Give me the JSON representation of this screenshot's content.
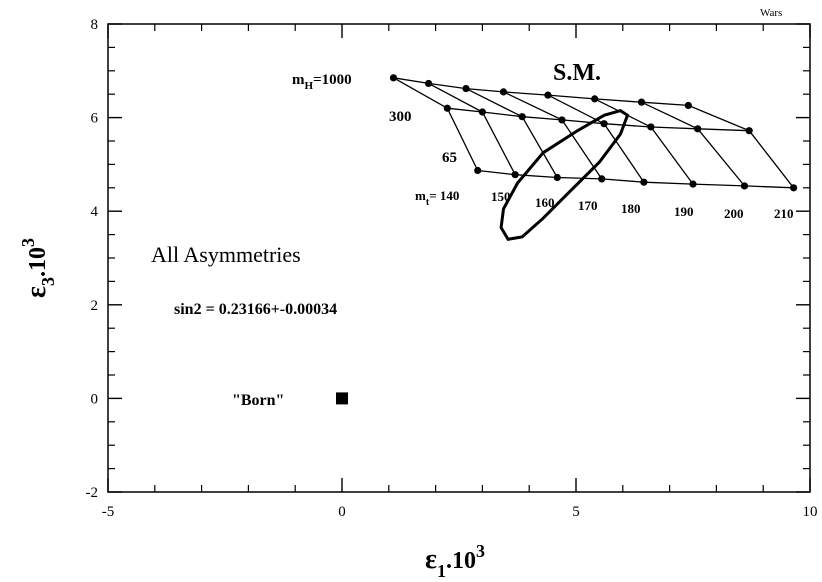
{
  "chart_data": {
    "type": "scatter",
    "title": "",
    "corner_label": "Wars",
    "xlabel": {
      "main": "ε",
      "sub": "1",
      "mid": ".10",
      "sup": "3"
    },
    "ylabel": {
      "main": "ε",
      "sub": "3",
      "mid": ".10",
      "sup": "3"
    },
    "xlim": [
      -5,
      10
    ],
    "ylim": [
      -2,
      8
    ],
    "x_ticks": [
      -5,
      0,
      5,
      10
    ],
    "y_ticks": [
      -2,
      0,
      2,
      4,
      6,
      8
    ],
    "x_minor_step": 1,
    "y_minor_step": 0.5,
    "grid": false,
    "grid_rows": [
      {
        "name": "mH=1000",
        "points": [
          [
            1.1,
            6.85
          ],
          [
            1.85,
            6.73
          ],
          [
            2.65,
            6.62
          ],
          [
            3.45,
            6.55
          ],
          [
            4.4,
            6.48
          ],
          [
            5.4,
            6.4
          ],
          [
            6.4,
            6.33
          ],
          [
            7.4,
            6.26
          ]
        ]
      },
      {
        "name": "mH=300",
        "points": [
          [
            2.25,
            6.2
          ],
          [
            3.0,
            6.12
          ],
          [
            3.85,
            6.02
          ],
          [
            4.7,
            5.95
          ],
          [
            5.6,
            5.87
          ],
          [
            6.6,
            5.8
          ],
          [
            7.6,
            5.76
          ],
          [
            8.7,
            5.72
          ]
        ]
      },
      {
        "name": "mH=65",
        "points": [
          [
            2.9,
            4.87
          ],
          [
            3.7,
            4.78
          ],
          [
            4.6,
            4.72
          ],
          [
            5.55,
            4.69
          ],
          [
            6.45,
            4.62
          ],
          [
            7.5,
            4.58
          ],
          [
            8.6,
            4.54
          ],
          [
            9.65,
            4.5
          ]
        ]
      }
    ],
    "mt_values": [
      "140",
      "150",
      "160",
      "170",
      "180",
      "190",
      "200",
      "210"
    ],
    "born_point": {
      "label": "\"Born\"",
      "x": 0,
      "y": 0
    },
    "ellipse": {
      "points": [
        [
          3.4,
          3.65
        ],
        [
          3.55,
          3.4
        ],
        [
          3.85,
          3.45
        ],
        [
          4.3,
          3.85
        ],
        [
          4.9,
          4.45
        ],
        [
          5.5,
          5.05
        ],
        [
          5.95,
          5.65
        ],
        [
          6.1,
          6.05
        ],
        [
          5.95,
          6.15
        ],
        [
          5.6,
          6.05
        ],
        [
          5.0,
          5.7
        ],
        [
          4.3,
          5.25
        ],
        [
          3.75,
          4.6
        ],
        [
          3.45,
          4.05
        ]
      ]
    },
    "annotations": {
      "sm": "S.M.",
      "mh_prefix": "m",
      "mh_sub": "H",
      "mh_value": "=1000",
      "mh_300": "300",
      "mh_65": "65",
      "mt_prefix": "m",
      "mt_sub": "t",
      "mt_eq": "= 140",
      "all_asymmetries": "All Asymmetries",
      "sin2": "sin2 = 0.23166+-0.00034"
    }
  }
}
